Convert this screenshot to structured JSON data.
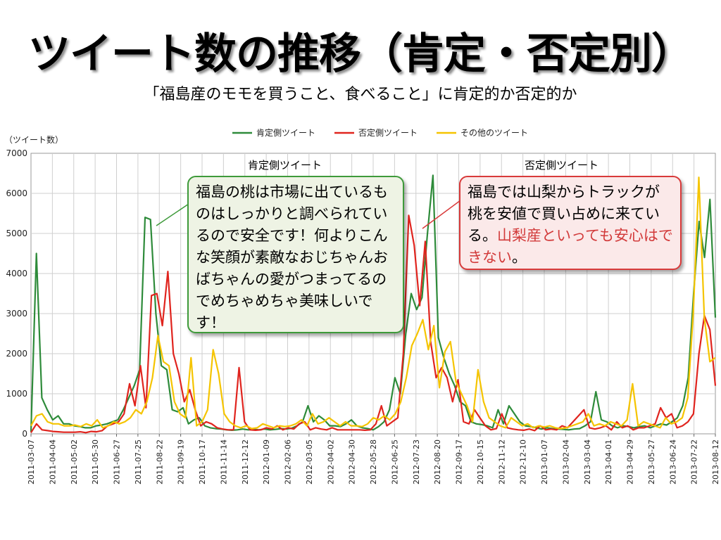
{
  "title": "ツイート数の推移（肯定・否定別）",
  "subtitle": "「福島産のモモを買うこと、食べること」に肯定的か否定的か",
  "annotations": {
    "positive_label": "肯定側ツイート",
    "negative_label": "否定側ツイート",
    "positive_callout": "福島の桃は市場に出ているものはしっかりと調べられているので安全です！何よりこんな笑顔が素敵なおじちゃんおばちゃんの愛がつまってるのでめちゃめちゃ美味しいです！",
    "negative_callout_main": "福島では山梨からトラックが桃を安値で買い占めに来ている。",
    "negative_callout_red": "山梨産といっても安心はできない",
    "negative_callout_end": "。"
  },
  "chart_data": {
    "type": "line",
    "ylabel": "（ツイート数）",
    "ylim": [
      0,
      7000
    ],
    "yticks": [
      0,
      1000,
      2000,
      3000,
      4000,
      5000,
      6000,
      7000
    ],
    "grid": true,
    "legend": "top",
    "xtick_labels": [
      "2011-03-07",
      "2011-04-04",
      "2011-05-02",
      "2011-05-30",
      "2011-06-27",
      "2011-07-25",
      "2011-08-22",
      "2011-09-19",
      "2011-10-17",
      "2011-11-14",
      "2011-12-12",
      "2012-01-09",
      "2012-02-06",
      "2012-03-05",
      "2012-04-02",
      "2012-04-30",
      "2012-05-28",
      "2012-06-25",
      "2012-07-23",
      "2012-08-20",
      "2012-09-17",
      "2012-10-15",
      "2012-11-12",
      "2012-12-10",
      "2013-01-07",
      "2013-02-04",
      "2013-03-04",
      "2013-04-01",
      "2013-04-29",
      "2013-05-27",
      "2013-06-24",
      "2013-07-22",
      "2013-08-12"
    ],
    "series": [
      {
        "name": "肯定側ツイート",
        "color": "#2e8b3a",
        "values": [
          50,
          4500,
          900,
          600,
          350,
          450,
          250,
          250,
          200,
          180,
          150,
          150,
          200,
          220,
          250,
          300,
          350,
          600,
          900,
          1200,
          1600,
          5400,
          5350,
          3000,
          1700,
          1600,
          600,
          550,
          650,
          250,
          350,
          400,
          200,
          150,
          130,
          120,
          100,
          90,
          100,
          120,
          100,
          110,
          100,
          120,
          100,
          110,
          130,
          120,
          140,
          200,
          300,
          700,
          300,
          450,
          350,
          200,
          200,
          180,
          250,
          350,
          200,
          150,
          130,
          100,
          180,
          300,
          600,
          1400,
          1000,
          2500,
          3500,
          3100,
          3400,
          5000,
          6450,
          2400,
          1900,
          1500,
          1200,
          800,
          700,
          300,
          250,
          230,
          200,
          150,
          600,
          250,
          700,
          500,
          300,
          200,
          180,
          150,
          120,
          150,
          130,
          120,
          110,
          100,
          120,
          130,
          200,
          300,
          1050,
          350,
          300,
          200,
          150,
          200,
          180,
          150,
          180,
          200,
          150,
          200,
          250,
          220,
          300,
          400,
          700,
          1400,
          3500,
          5300,
          4400,
          5850,
          2900
        ]
      },
      {
        "name": "否定側ツイート",
        "color": "#e0241e",
        "values": [
          30,
          250,
          100,
          80,
          60,
          50,
          40,
          40,
          40,
          50,
          30,
          60,
          50,
          80,
          200,
          250,
          300,
          500,
          1250,
          700,
          1700,
          650,
          3450,
          3500,
          2700,
          4050,
          2000,
          1500,
          800,
          1100,
          600,
          200,
          300,
          250,
          150,
          120,
          100,
          100,
          1650,
          300,
          100,
          90,
          100,
          150,
          120,
          200,
          100,
          150,
          120,
          250,
          300,
          100,
          150,
          120,
          100,
          150,
          100,
          100,
          100,
          100,
          100,
          90,
          100,
          250,
          700,
          200,
          300,
          400,
          2000,
          5450,
          4700,
          3200,
          4800,
          2300,
          1400,
          1650,
          1400,
          800,
          1350,
          300,
          250,
          600,
          400,
          200,
          100,
          130,
          500,
          150,
          120,
          100,
          90,
          120,
          80,
          200,
          100,
          120,
          100,
          200,
          150,
          300,
          450,
          600,
          150,
          120,
          150,
          200,
          100,
          300,
          150,
          200,
          100,
          150,
          150,
          200,
          250,
          650,
          400,
          500,
          150,
          200,
          300,
          500,
          2000,
          2950,
          2600,
          1200
        ]
      },
      {
        "name": "その他のツイート",
        "color": "#f5c400",
        "values": [
          200,
          450,
          500,
          300,
          250,
          250,
          200,
          200,
          220,
          180,
          250,
          200,
          350,
          150,
          200,
          300,
          250,
          300,
          400,
          600,
          500,
          800,
          1400,
          2450,
          1800,
          1700,
          800,
          500,
          400,
          1900,
          200,
          300,
          600,
          2100,
          1500,
          500,
          300,
          200,
          150,
          200,
          130,
          150,
          250,
          200,
          150,
          200,
          180,
          200,
          250,
          350,
          200,
          500,
          250,
          300,
          400,
          300,
          200,
          300,
          200,
          200,
          180,
          250,
          400,
          350,
          450,
          350,
          500,
          800,
          1400,
          2200,
          2500,
          2850,
          2100,
          2700,
          1150,
          2050,
          2300,
          1300,
          1000,
          700,
          300,
          1600,
          800,
          400,
          300,
          200,
          150,
          400,
          300,
          200,
          250,
          150,
          200,
          170,
          200,
          150,
          130,
          150,
          200,
          250,
          300,
          500,
          200,
          250,
          200,
          300,
          250,
          200,
          350,
          1250,
          200,
          300,
          250,
          200,
          150,
          400,
          250,
          300,
          400,
          900,
          3000,
          6400,
          2900,
          1800,
          1900
        ]
      }
    ]
  }
}
